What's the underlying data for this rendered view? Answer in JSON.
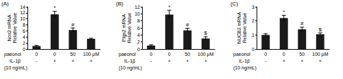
{
  "chart_data": [
    {
      "type": "bar",
      "title": "(A)",
      "ylabel": "Nos2 mRNA\nRelative Value",
      "categories": [
        "0",
        "0",
        "50",
        "100 μM"
      ],
      "values": [
        1.0,
        11.5,
        6.3,
        3.4
      ],
      "errors": [
        0.2,
        1.0,
        0.7,
        0.2
      ],
      "marks": [
        null,
        "*",
        "#",
        null
      ],
      "rows": [
        {
          "label": "paeonol"
        },
        {
          "label": "IL-1β",
          "values": [
            "-",
            "+",
            "+",
            "+"
          ]
        }
      ],
      "note": "(10 ng/mL)",
      "color": "#1a1a1a",
      "ylim": [
        0,
        14
      ],
      "yticks": [
        0,
        2,
        4,
        6,
        8,
        10,
        12,
        14
      ],
      "grid": false
    },
    {
      "type": "bar",
      "title": "(B)",
      "ylabel": "Ptgs2 mRNA\nRelative Value",
      "categories": [
        "0",
        "0",
        "50",
        "100 μM"
      ],
      "values": [
        1.0,
        9.8,
        5.3,
        3.0
      ],
      "errors": [
        0.2,
        1.2,
        0.6,
        0.5
      ],
      "marks": [
        null,
        "*",
        "#",
        "$"
      ],
      "rows": [
        {
          "label": "paeonol"
        },
        {
          "label": "IL-1β",
          "values": [
            "-",
            "+",
            "+",
            "+"
          ]
        }
      ],
      "note": "(10 ng/mL)",
      "color": "#1a1a1a",
      "ylim": [
        0,
        12
      ],
      "yticks": [
        0,
        2,
        4,
        6,
        8,
        10,
        12
      ],
      "grid": false
    },
    {
      "type": "bar",
      "title": "(C)",
      "ylabel": "NUCB2 mRNA\nRelative Value",
      "categories": [
        "0",
        "0",
        "50",
        "100 μM"
      ],
      "values": [
        1.0,
        2.2,
        1.4,
        1.05
      ],
      "errors": [
        0.08,
        0.2,
        0.15,
        0.1
      ],
      "marks": [
        null,
        "*",
        "#",
        "$"
      ],
      "rows": [
        {
          "label": "paeonol"
        },
        {
          "label": "IL-1β",
          "values": [
            "-",
            "+",
            "+",
            "+"
          ]
        }
      ],
      "note": "(10 ng/mL)",
      "color": "#1a1a1a",
      "ylim": [
        0,
        3
      ],
      "yticks": [
        0,
        1,
        2,
        3
      ],
      "grid": false
    }
  ]
}
